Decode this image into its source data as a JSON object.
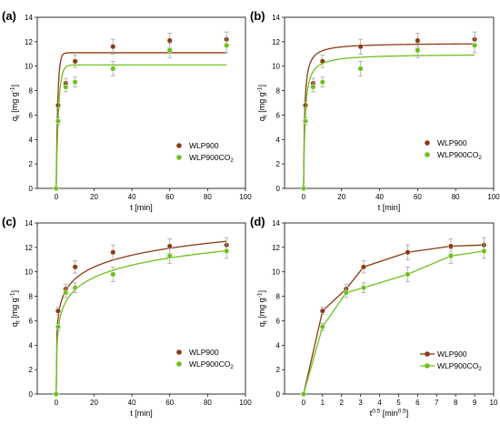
{
  "colors": {
    "wlp900": "#8b3a12",
    "wlp900co2": "#6cc21b",
    "errorbar": "#999999"
  },
  "chart_data": [
    {
      "panel": "(a)",
      "type": "scatter",
      "xlabel": "t [min]",
      "ylabel": "qt [mg g-1]",
      "xlim": [
        -10,
        100
      ],
      "ylim": [
        0,
        14
      ],
      "xticks": [
        0,
        20,
        40,
        60,
        80,
        100
      ],
      "yticks": [
        0,
        2,
        4,
        6,
        8,
        10,
        12,
        14
      ],
      "legend": {
        "position": "center-right",
        "entries": [
          "WLP900",
          "WLP900CO2"
        ]
      },
      "series": [
        {
          "name": "WLP900",
          "color_key": "wlp900",
          "x": [
            0,
            1,
            5,
            10,
            30,
            60,
            90
          ],
          "y": [
            0,
            6.8,
            8.6,
            10.4,
            11.6,
            12.1,
            12.2
          ],
          "err": [
            0,
            0.3,
            0.4,
            0.5,
            0.6,
            0.6,
            0.6
          ],
          "fit": {
            "model": "pfo",
            "qe": 11.1,
            "k": 1.2
          }
        },
        {
          "name": "WLP900CO2",
          "color_key": "wlp900co2",
          "x": [
            0,
            1,
            5,
            10,
            30,
            60,
            90
          ],
          "y": [
            0,
            5.5,
            8.3,
            8.7,
            9.8,
            11.3,
            11.7
          ],
          "err": [
            0,
            0.3,
            0.4,
            0.4,
            0.6,
            0.6,
            0.6
          ],
          "fit": {
            "model": "pfo",
            "qe": 10.1,
            "k": 0.8
          }
        }
      ]
    },
    {
      "panel": "(b)",
      "type": "scatter",
      "xlabel": "t [min]",
      "ylabel": "qt [mg g-1]",
      "xlim": [
        -10,
        100
      ],
      "ylim": [
        0,
        14
      ],
      "xticks": [
        0,
        20,
        40,
        60,
        80,
        100
      ],
      "yticks": [
        0,
        2,
        4,
        6,
        8,
        10,
        12,
        14
      ],
      "legend": {
        "position": "bottom-right",
        "entries": [
          "WLP900",
          "WLP900CO2"
        ]
      },
      "series": [
        {
          "name": "WLP900",
          "color_key": "wlp900",
          "x": [
            0,
            1,
            5,
            10,
            30,
            60,
            90
          ],
          "y": [
            0,
            6.8,
            8.6,
            10.4,
            11.6,
            12.1,
            12.2
          ],
          "err": [
            0,
            0.3,
            0.4,
            0.5,
            0.6,
            0.6,
            0.6
          ],
          "fit": {
            "model": "pso",
            "qe": 11.9,
            "k": 0.15
          }
        },
        {
          "name": "WLP900CO2",
          "color_key": "wlp900co2",
          "x": [
            0,
            1,
            5,
            10,
            30,
            60,
            90
          ],
          "y": [
            0,
            5.5,
            8.3,
            8.7,
            9.8,
            11.3,
            11.7
          ],
          "err": [
            0,
            0.3,
            0.4,
            0.4,
            0.6,
            0.6,
            0.6
          ],
          "fit": {
            "model": "pso",
            "qe": 11.0,
            "k": 0.12
          }
        }
      ]
    },
    {
      "panel": "(c)",
      "type": "scatter",
      "xlabel": "t [min]",
      "ylabel": "qt [mg g-1]",
      "xlim": [
        -10,
        100
      ],
      "ylim": [
        0,
        14
      ],
      "xticks": [
        0,
        20,
        40,
        60,
        80,
        100
      ],
      "yticks": [
        0,
        2,
        4,
        6,
        8,
        10,
        12,
        14
      ],
      "legend": {
        "position": "bottom-right",
        "entries": [
          "WLP900",
          "WLP900CO2"
        ]
      },
      "series": [
        {
          "name": "WLP900",
          "color_key": "wlp900",
          "x": [
            0,
            1,
            5,
            10,
            30,
            60,
            90
          ],
          "y": [
            0,
            6.8,
            8.6,
            10.4,
            11.6,
            12.1,
            12.2
          ],
          "err": [
            0,
            0.3,
            0.4,
            0.5,
            0.6,
            0.6,
            0.6
          ],
          "fit": {
            "model": "elovich",
            "a": 6.2,
            "b": 1.4
          }
        },
        {
          "name": "WLP900CO2",
          "color_key": "wlp900co2",
          "x": [
            0,
            1,
            5,
            10,
            30,
            60,
            90
          ],
          "y": [
            0,
            5.5,
            8.3,
            8.7,
            9.8,
            11.3,
            11.7
          ],
          "err": [
            0,
            0.3,
            0.4,
            0.4,
            0.6,
            0.6,
            0.6
          ],
          "fit": {
            "model": "elovich",
            "a": 5.2,
            "b": 1.45
          }
        }
      ]
    },
    {
      "panel": "(d)",
      "type": "line",
      "xlabel": "t0.5 [min0.5]",
      "ylabel": "qt [mg g-1]",
      "xlim": [
        -1,
        10
      ],
      "ylim": [
        0,
        14
      ],
      "xticks": [
        0,
        1,
        2,
        3,
        4,
        5,
        6,
        7,
        8,
        9,
        10
      ],
      "yticks": [
        0,
        2,
        4,
        6,
        8,
        10,
        12,
        14
      ],
      "legend": {
        "position": "bottom-right",
        "entries": [
          "WLP900",
          "WLP900CO2"
        ]
      },
      "series": [
        {
          "name": "WLP900",
          "color_key": "wlp900",
          "x": [
            0,
            1,
            2.24,
            3.16,
            5.48,
            7.75,
            9.49
          ],
          "y": [
            0,
            6.8,
            8.6,
            10.4,
            11.6,
            12.1,
            12.2
          ],
          "err": [
            0,
            0.3,
            0.4,
            0.5,
            0.6,
            0.6,
            0.6
          ]
        },
        {
          "name": "WLP900CO2",
          "color_key": "wlp900co2",
          "x": [
            0,
            1,
            2.24,
            3.16,
            5.48,
            7.75,
            9.49
          ],
          "y": [
            0,
            5.5,
            8.3,
            8.7,
            9.8,
            11.3,
            11.7
          ],
          "err": [
            0,
            0.3,
            0.4,
            0.4,
            0.6,
            0.6,
            0.6
          ]
        }
      ]
    }
  ]
}
